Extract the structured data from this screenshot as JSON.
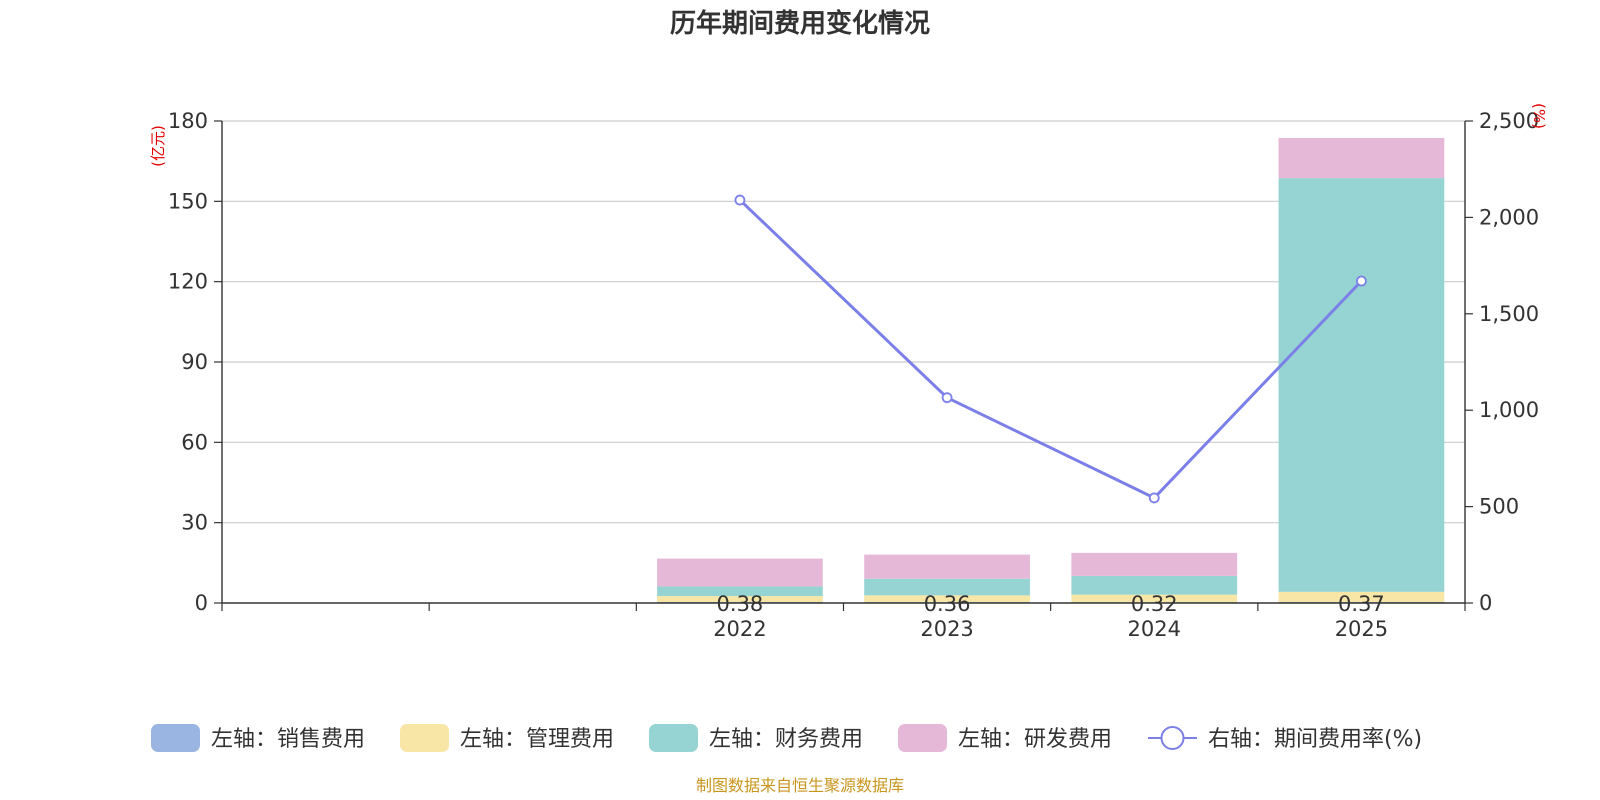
{
  "chart_data": {
    "type": "bar",
    "title": "历年期间费用变化情况",
    "categories": [
      "",
      "",
      "2022",
      "2023",
      "2024",
      "2025"
    ],
    "left_axis": {
      "unit": "(亿元)",
      "ylim": [
        0,
        180
      ],
      "ticks": [
        "0",
        "30",
        "60",
        "90",
        "120",
        "150",
        "180"
      ]
    },
    "right_axis": {
      "unit": "(%)",
      "ylim": [
        0,
        2500
      ],
      "ticks": [
        "0",
        "500",
        "1,000",
        "1,500",
        "2,000",
        "2,500"
      ]
    },
    "series": [
      {
        "name": "左轴：销售费用",
        "axis": "left",
        "color": "#9ab5e1",
        "values": [
          null,
          null,
          0.38,
          0.36,
          0.32,
          0.37
        ]
      },
      {
        "name": "左轴：管理费用",
        "axis": "left",
        "color": "#f8e6a6",
        "values": [
          null,
          null,
          2.2,
          2.5,
          2.8,
          3.8
        ]
      },
      {
        "name": "左轴：财务费用",
        "axis": "left",
        "color": "#96d3d3",
        "values": [
          null,
          null,
          3.6,
          6.2,
          7.0,
          154.5
        ]
      },
      {
        "name": "左轴：研发费用",
        "axis": "left",
        "color": "#e6b8d8",
        "values": [
          null,
          null,
          10.4,
          9.0,
          8.6,
          15.0
        ]
      },
      {
        "name": "右轴：期间费用率(%)",
        "axis": "right",
        "type": "line",
        "color": "#7b7fe8",
        "values": [
          null,
          null,
          2090,
          1065,
          545,
          1670
        ]
      }
    ],
    "bar_labels": [
      "",
      "",
      "0.38",
      "0.36",
      "0.32",
      "0.37"
    ],
    "legend_position": "bottom"
  },
  "source_text": "制图数据来自恒生聚源数据库"
}
